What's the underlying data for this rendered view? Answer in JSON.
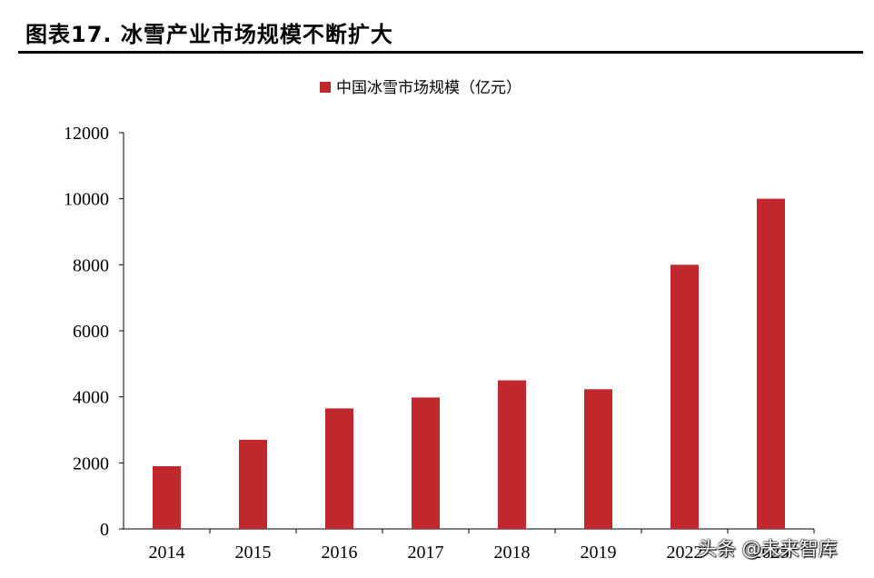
{
  "figure": {
    "title": "图表17. 冰雪产业市场规模不断扩大"
  },
  "chart_data": {
    "type": "bar",
    "title": "",
    "xlabel": "",
    "ylabel": "",
    "categories": [
      "2014",
      "2015",
      "2016",
      "2017",
      "2018",
      "2019",
      "2022",
      "2025"
    ],
    "series": [
      {
        "name": "中国冰雪市场规模（亿元）",
        "values": [
          1900,
          2700,
          3650,
          3980,
          4500,
          4230,
          8000,
          10000
        ]
      }
    ],
    "ylim": [
      0,
      12000
    ],
    "yticks": [
      0,
      2000,
      4000,
      6000,
      8000,
      10000,
      12000
    ],
    "grid": false,
    "legend_position": "top-center",
    "bar_color": "#c0282e"
  },
  "watermark": {
    "text": "头条 @未来智库"
  }
}
